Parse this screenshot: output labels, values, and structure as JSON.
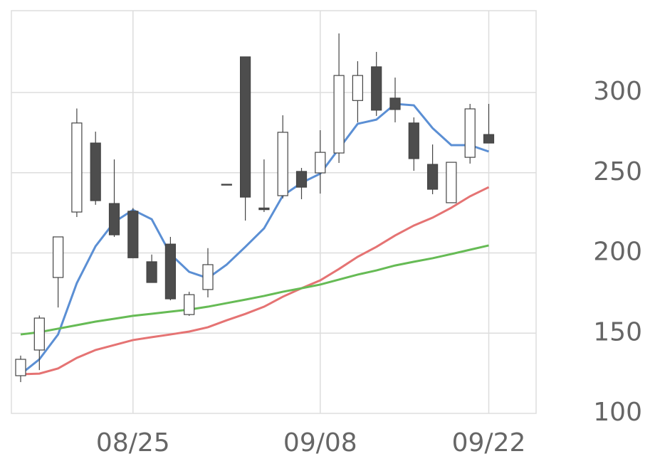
{
  "chart_data": {
    "type": "candlestick",
    "categories": [
      null,
      null,
      null,
      null,
      null,
      null,
      "08/25",
      null,
      null,
      null,
      null,
      null,
      null,
      null,
      null,
      null,
      "09/08",
      null,
      null,
      null,
      null,
      null,
      null,
      null,
      null,
      "09/22"
    ],
    "open": [
      123.5,
      139.5,
      184.7,
      225.5,
      268.5,
      230.8,
      226,
      194.5,
      205.5,
      161.6,
      177.2,
      242.8,
      322.2,
      228,
      235.7,
      250.8,
      249.9,
      262.3,
      295,
      316,
      296.5,
      281,
      255.2,
      231.3,
      259.6,
      273.8
    ],
    "high": [
      136,
      161,
      210,
      290,
      275.6,
      258.3,
      228,
      199,
      210,
      175.8,
      203,
      242.8,
      322.2,
      258.3,
      285.8,
      253,
      276.5,
      336.8,
      319.5,
      325.3,
      309.3,
      284.5,
      267.6,
      256.5,
      292.9,
      292.9
    ],
    "low": [
      119.5,
      127,
      166,
      222.4,
      230,
      210,
      197,
      181.6,
      170.5,
      160.8,
      172.3,
      242.8,
      220.2,
      225.5,
      234,
      233.5,
      237,
      256.1,
      281.4,
      285.4,
      281.4,
      251.2,
      236.6,
      231.3,
      255.7,
      268.5
    ],
    "close": [
      133.7,
      159.4,
      210,
      281,
      232.6,
      211.3,
      197,
      181.6,
      171.4,
      174,
      192.7,
      242.8,
      234.8,
      227,
      275.2,
      241,
      262.7,
      310.6,
      310.6,
      289,
      289.4,
      258.8,
      239.7,
      256.5,
      289.8,
      268.5
    ],
    "up_color": "#ffffff",
    "down_color": "#4d4d4d",
    "edge_color": "#444444",
    "series": [
      {
        "color": "#5b8fd4",
        "values": [
          124.4,
          133.7,
          149.2,
          181.2,
          204.2,
          219.3,
          226.8,
          221,
          199.3,
          188.2,
          184.3,
          192.7,
          203.8,
          215.3,
          235.7,
          243.7,
          249.4,
          265,
          280.5,
          283.1,
          292.9,
          292,
          277.8,
          267.2,
          267.2,
          263.2
        ]
      },
      {
        "color": "#e57373",
        "values": [
          124.4,
          124.8,
          128,
          134.6,
          139.5,
          142.6,
          145.7,
          147.5,
          149.2,
          151,
          153.7,
          158,
          162,
          166.5,
          172.7,
          178,
          182.9,
          190,
          197.6,
          203.8,
          210.9,
          217.1,
          222,
          228.2,
          235.3,
          241
        ]
      },
      {
        "color": "#66bb55",
        "values": [
          149.2,
          150.6,
          152.8,
          155,
          157.2,
          159,
          160.8,
          162.1,
          163.4,
          164.7,
          166.5,
          168.7,
          170.9,
          173.2,
          175.8,
          178,
          180.3,
          183.4,
          186.5,
          189.1,
          192.2,
          194.5,
          196.7,
          199.3,
          202,
          204.7
        ]
      }
    ],
    "ylim": [
      100,
      351
    ],
    "yticks": [
      100,
      150,
      200,
      250,
      300
    ],
    "grid": true
  }
}
